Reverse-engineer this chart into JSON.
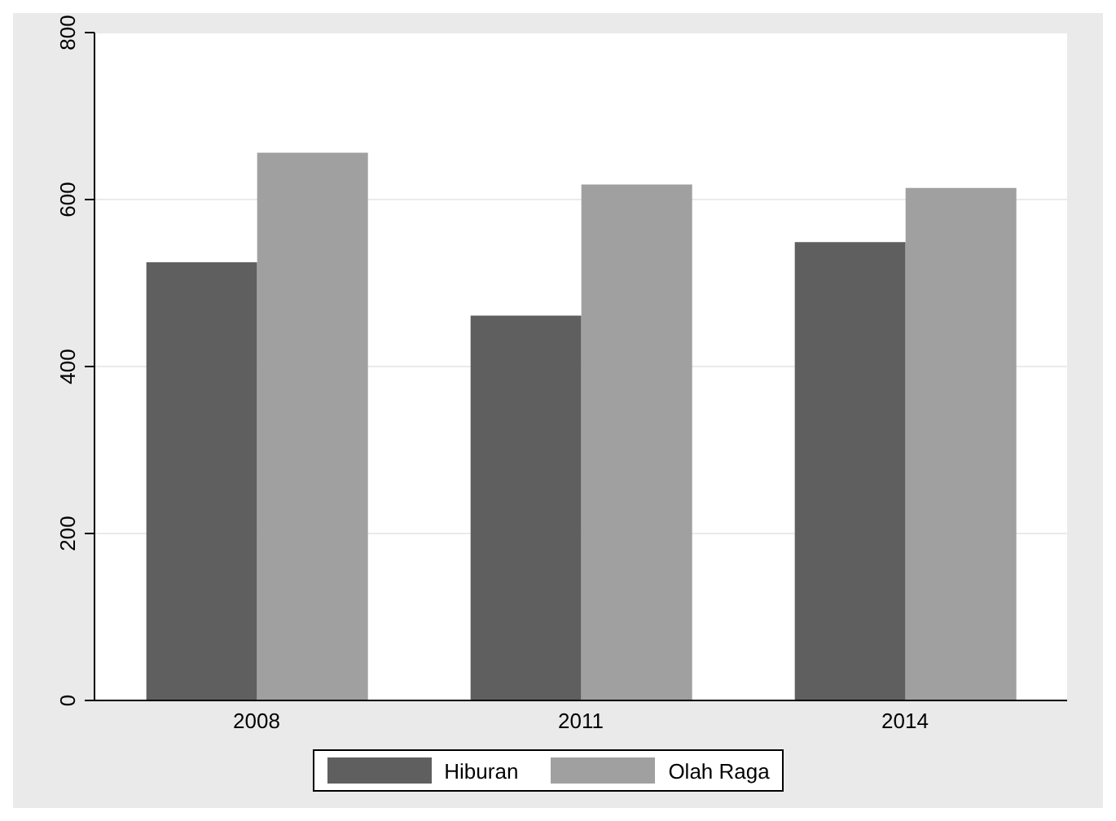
{
  "chart_data": {
    "type": "bar",
    "categories": [
      "2008",
      "2011",
      "2014"
    ],
    "series": [
      {
        "name": "Hiburan",
        "color": "#5f5f5f",
        "values": [
          525,
          461,
          549
        ]
      },
      {
        "name": "Olah Raga",
        "color": "#a0a0a0",
        "values": [
          656,
          618,
          614
        ]
      }
    ],
    "ylim": [
      0,
      800
    ],
    "yticks": [
      0,
      200,
      400,
      600,
      800
    ],
    "grid": "y",
    "legend": "bottom"
  }
}
